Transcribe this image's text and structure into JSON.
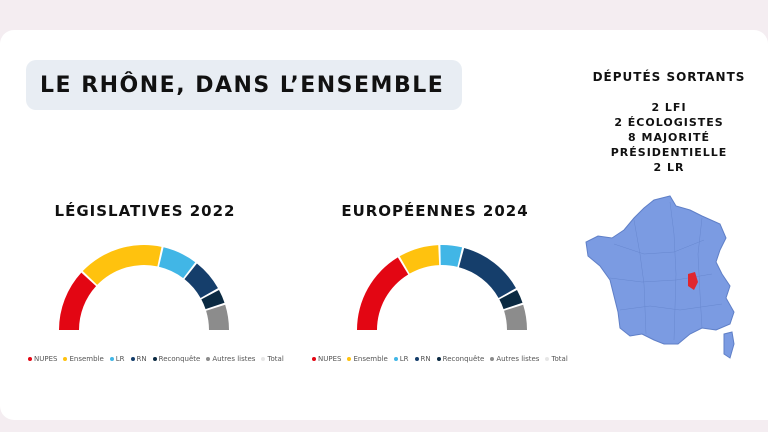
{
  "title": "LE RHÔNE, DANS L’ENSEMBLE",
  "deputes": {
    "title": "DÉPUTÉS SORTANTS",
    "lines": [
      "2 LFI",
      "2 ÉCOLOGISTES",
      "8 MAJORITÉ",
      "PRÉSIDENTIELLE",
      "2 LR"
    ]
  },
  "map": {
    "fill": "#7b9be2",
    "highlight": "#e0262e",
    "label": "france-map"
  },
  "legend": [
    {
      "name": "NUPES",
      "color": "#e30613"
    },
    {
      "name": "Ensemble",
      "color": "#ffc20e"
    },
    {
      "name": "LR",
      "color": "#41b6e6"
    },
    {
      "name": "RN",
      "color": "#153e6b"
    },
    {
      "name": "Reconquête",
      "color": "#0b2a42"
    },
    {
      "name": "Autres listes",
      "color": "#8c8c8c"
    },
    {
      "name": "Total",
      "color": "#e6e6e6"
    }
  ],
  "chart_data": [
    {
      "type": "pie",
      "style": "half-donut",
      "title": "LÉGISLATIVES 2022",
      "categories": [
        "NUPES",
        "Ensemble",
        "LR",
        "RN",
        "Reconquête",
        "Autres listes"
      ],
      "values": [
        24,
        33,
        14,
        13,
        6,
        10
      ]
    },
    {
      "type": "pie",
      "style": "half-donut",
      "title": "EUROPÉENNES 2024",
      "categories": [
        "NUPES",
        "Ensemble",
        "LR",
        "RN",
        "Reconquête",
        "Autres listes"
      ],
      "values": [
        33,
        16,
        9,
        26,
        6,
        10
      ]
    }
  ]
}
